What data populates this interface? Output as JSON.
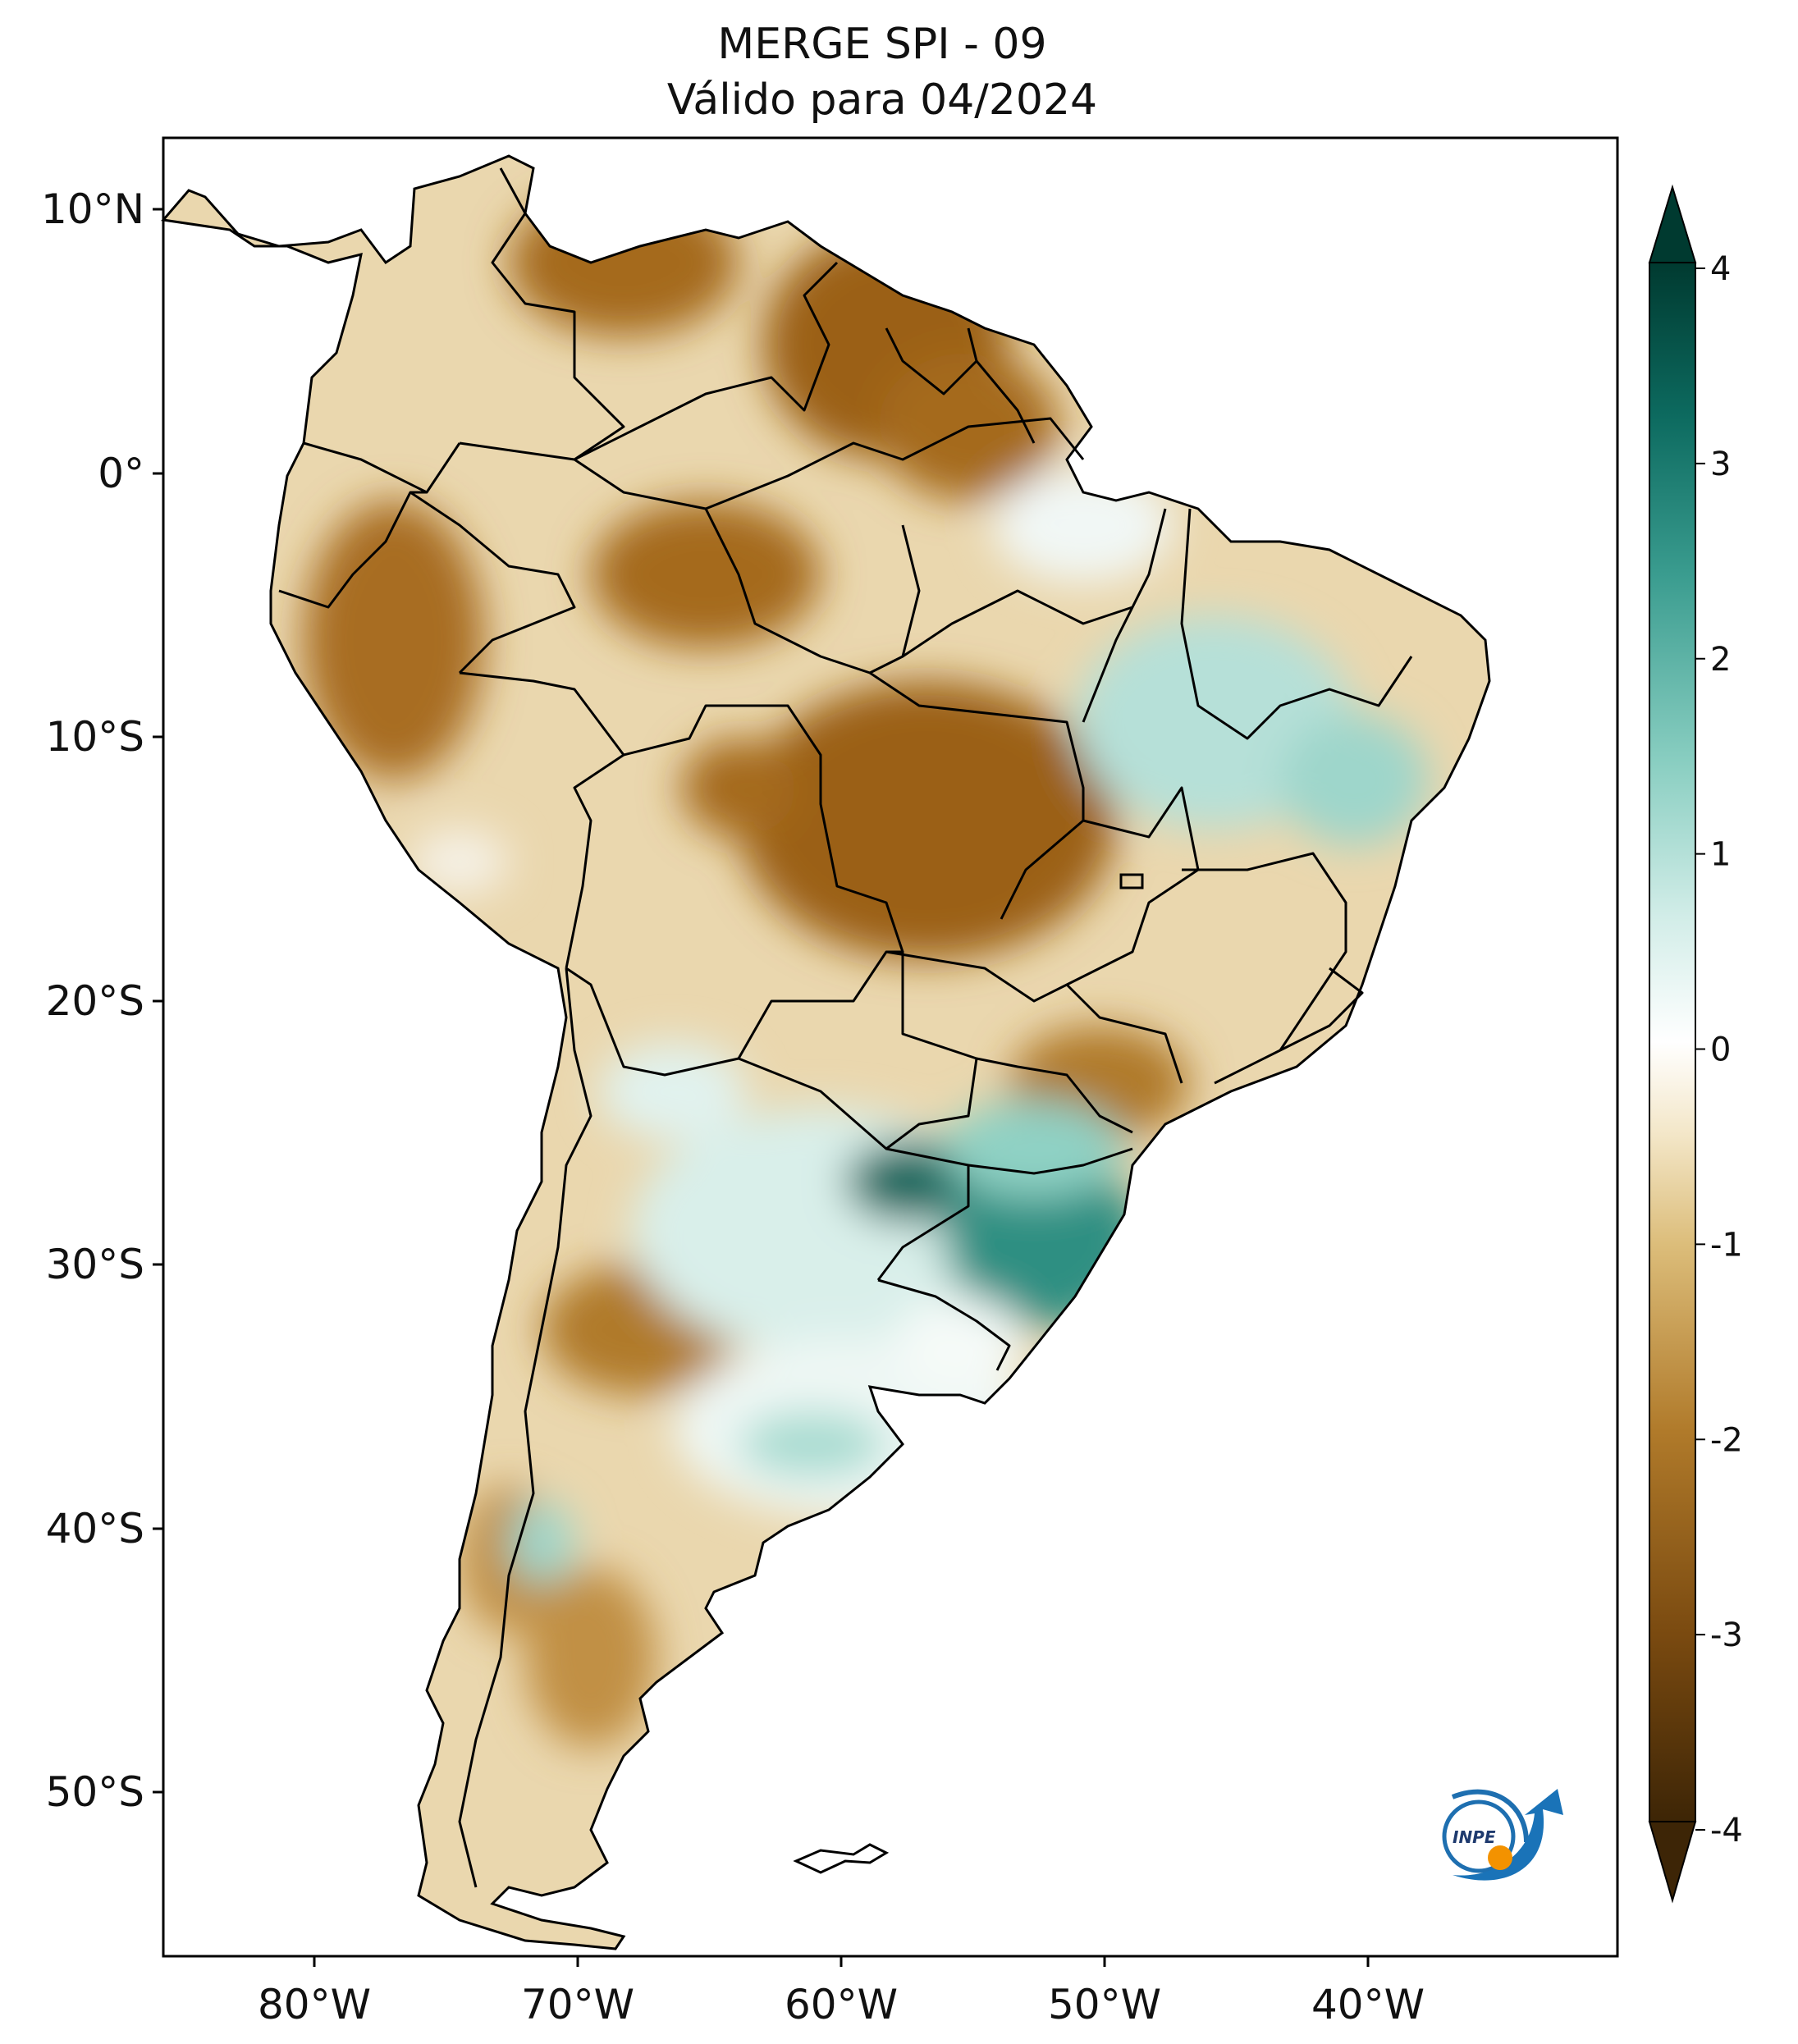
{
  "title": {
    "line1": "MERGE   SPI - 09",
    "line2": "Válido para 04/2024"
  },
  "axes": {
    "lat_ticks": [
      "10°N",
      "0°",
      "10°S",
      "20°S",
      "30°S",
      "40°S",
      "50°S"
    ],
    "lon_ticks": [
      "80°W",
      "70°W",
      "60°W",
      "50°W",
      "40°W"
    ]
  },
  "colorbar": {
    "ticks": [
      "4",
      "3",
      "2",
      "1",
      "0",
      "-1",
      "-2",
      "-3",
      "-4"
    ],
    "colors": [
      "#3d2506",
      "#6b3f0d",
      "#9e6416",
      "#c8963e",
      "#e5c887",
      "#f5ead0",
      "#ffffff",
      "#d4eee9",
      "#8fd1c4",
      "#45a497",
      "#137065",
      "#003d33"
    ]
  },
  "logo": {
    "text": "INPE"
  }
}
